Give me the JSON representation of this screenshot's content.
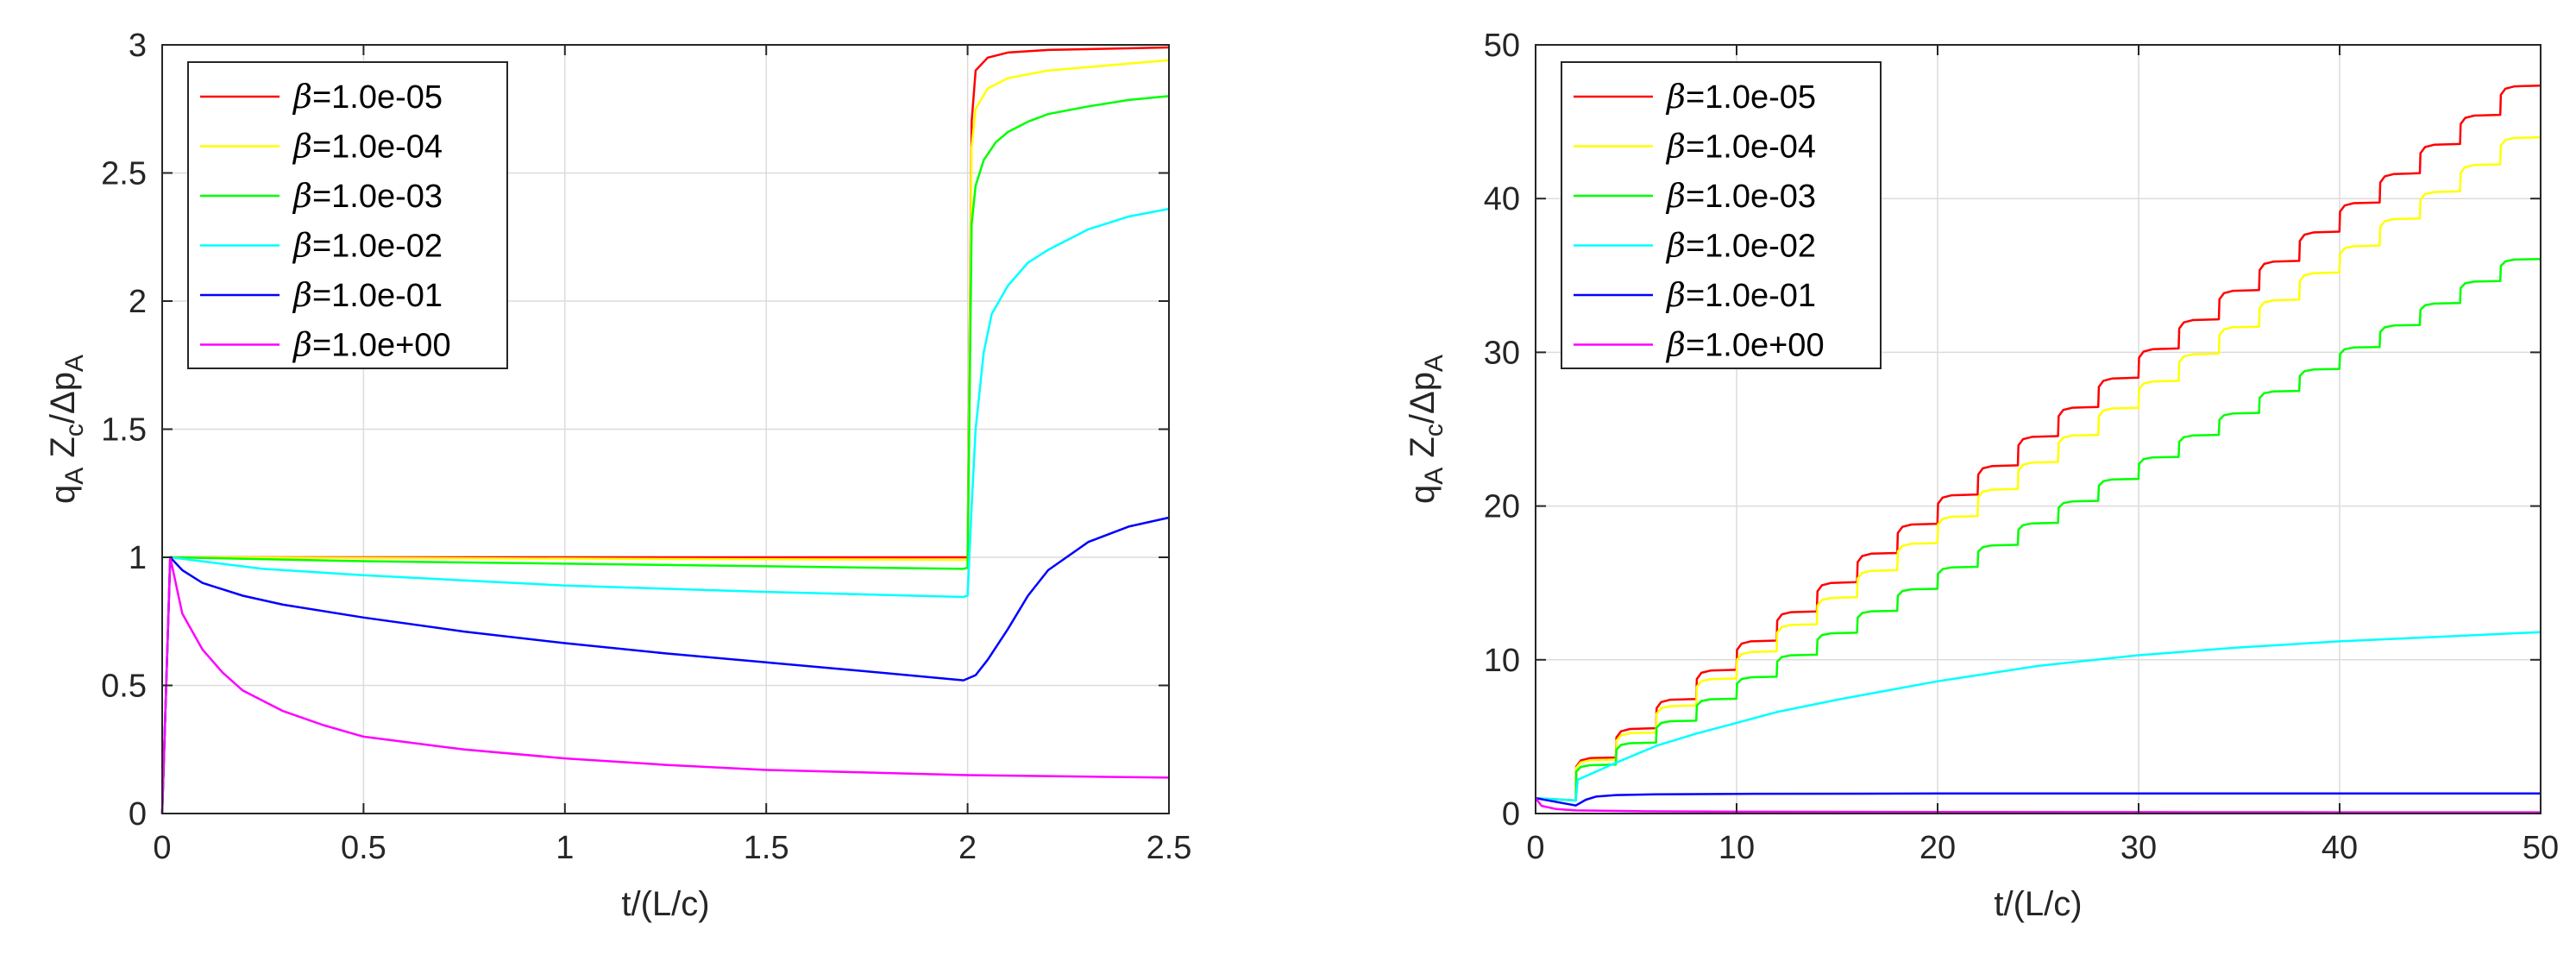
{
  "chart_data": [
    {
      "type": "line",
      "title": "",
      "xlabel": "t/(L/c)",
      "ylabel_main": "q",
      "ylabel_parts": [
        [
          "q",
          "A"
        ],
        [
          "Z",
          "c"
        ],
        [
          "/Δp",
          "A"
        ]
      ],
      "xlim": [
        0,
        2.5
      ],
      "ylim": [
        0,
        3
      ],
      "xticks": [
        0,
        0.5,
        1,
        1.5,
        2,
        2.5
      ],
      "xtick_labels": [
        "0",
        "0.5",
        "1",
        "1.5",
        "2",
        "2.5"
      ],
      "yticks": [
        0,
        0.5,
        1,
        1.5,
        2,
        2.5,
        3
      ],
      "ytick_labels": [
        "0",
        "0.5",
        "1",
        "1.5",
        "2",
        "2.5",
        "3"
      ],
      "grid": true,
      "legend_position": "top-left",
      "series": [
        {
          "name": "β=1.0e-05",
          "legend_text": "=1.0e-05",
          "color": "#ff0000",
          "x": [
            0,
            0.02,
            1.98,
            2.0,
            2.01,
            2.02,
            2.05,
            2.1,
            2.2,
            2.5
          ],
          "y": [
            0,
            1.0,
            1.0,
            1.0,
            2.7,
            2.9,
            2.95,
            2.97,
            2.98,
            2.99
          ]
        },
        {
          "name": "β=1.0e-04",
          "legend_text": "=1.0e-04",
          "color": "#ffff00",
          "x": [
            0,
            0.02,
            1.98,
            2.0,
            2.01,
            2.02,
            2.05,
            2.1,
            2.2,
            2.35,
            2.5
          ],
          "y": [
            0,
            1.0,
            0.99,
            0.99,
            2.6,
            2.75,
            2.83,
            2.87,
            2.9,
            2.92,
            2.94
          ]
        },
        {
          "name": "β=1.0e-03",
          "legend_text": "=1.0e-03",
          "color": "#00ff00",
          "x": [
            0,
            0.02,
            0.5,
            1.0,
            1.5,
            1.99,
            2.0,
            2.01,
            2.02,
            2.04,
            2.07,
            2.1,
            2.15,
            2.2,
            2.3,
            2.4,
            2.5
          ],
          "y": [
            0,
            1.0,
            0.985,
            0.975,
            0.965,
            0.955,
            0.96,
            2.3,
            2.45,
            2.55,
            2.62,
            2.66,
            2.7,
            2.73,
            2.76,
            2.785,
            2.8
          ]
        },
        {
          "name": "β=1.0e-02",
          "legend_text": "=1.0e-02",
          "color": "#00ffff",
          "x": [
            0,
            0.02,
            0.25,
            0.5,
            1.0,
            1.5,
            1.99,
            2.0,
            2.01,
            2.02,
            2.04,
            2.06,
            2.1,
            2.15,
            2.2,
            2.3,
            2.4,
            2.5
          ],
          "y": [
            0,
            1.0,
            0.955,
            0.93,
            0.89,
            0.865,
            0.845,
            0.85,
            1.2,
            1.5,
            1.8,
            1.95,
            2.06,
            2.15,
            2.2,
            2.28,
            2.33,
            2.36
          ]
        },
        {
          "name": "β=1.0e-01",
          "legend_text": "=1.0e-01",
          "color": "#0000ff",
          "x": [
            0,
            0.02,
            0.05,
            0.1,
            0.2,
            0.3,
            0.5,
            0.75,
            1.0,
            1.25,
            1.5,
            1.75,
            1.99,
            2.02,
            2.05,
            2.1,
            2.15,
            2.2,
            2.3,
            2.4,
            2.5
          ],
          "y": [
            0,
            1.0,
            0.95,
            0.9,
            0.85,
            0.815,
            0.765,
            0.71,
            0.665,
            0.625,
            0.59,
            0.555,
            0.52,
            0.54,
            0.6,
            0.72,
            0.85,
            0.95,
            1.06,
            1.12,
            1.155
          ]
        },
        {
          "name": "β=1.0e+00",
          "legend_text": "=1.0e+00",
          "color": "#ff00ff",
          "x": [
            0,
            0.02,
            0.05,
            0.1,
            0.15,
            0.2,
            0.3,
            0.4,
            0.5,
            0.75,
            1.0,
            1.25,
            1.5,
            2.0,
            2.5
          ],
          "y": [
            0,
            1.0,
            0.78,
            0.64,
            0.55,
            0.48,
            0.4,
            0.345,
            0.3,
            0.25,
            0.215,
            0.19,
            0.17,
            0.15,
            0.14
          ]
        }
      ]
    },
    {
      "type": "line",
      "title": "",
      "xlabel": "t/(L/c)",
      "ylabel_parts": [
        [
          "q",
          "A"
        ],
        [
          "Z",
          "c"
        ],
        [
          "/Δp",
          "A"
        ]
      ],
      "xlim": [
        0,
        50
      ],
      "ylim": [
        0,
        50
      ],
      "xticks": [
        0,
        10,
        20,
        30,
        40,
        50
      ],
      "xtick_labels": [
        "0",
        "10",
        "20",
        "30",
        "40",
        "50"
      ],
      "yticks": [
        0,
        10,
        20,
        30,
        40,
        50
      ],
      "ytick_labels": [
        "0",
        "10",
        "20",
        "30",
        "40",
        "50"
      ],
      "grid": true,
      "legend_position": "top-left",
      "series": [
        {
          "name": "β=1.0e-05",
          "legend_text": "=1.0e-05",
          "color": "#ff0000",
          "model": "steps",
          "step_size": 1.9,
          "start": 1.0,
          "settle": 1.0
        },
        {
          "name": "β=1.0e-04",
          "legend_text": "=1.0e-04",
          "color": "#ffff00",
          "model": "steps",
          "step_size": 1.76,
          "start": 1.0,
          "settle": 0.9
        },
        {
          "name": "β=1.0e-03",
          "legend_text": "=1.0e-03",
          "color": "#00ff00",
          "model": "steps",
          "step_size": 1.43,
          "start": 1.0,
          "settle": 0.75
        },
        {
          "name": "β=1.0e-02",
          "legend_text": "=1.0e-02",
          "color": "#00ffff",
          "model": "smooth",
          "x": [
            0,
            2,
            2.1,
            4,
            6,
            8,
            10,
            12,
            15,
            20,
            25,
            30,
            35,
            40,
            45,
            50
          ],
          "y": [
            1.0,
            0.85,
            2.2,
            3.3,
            4.4,
            5.2,
            5.9,
            6.6,
            7.4,
            8.6,
            9.6,
            10.3,
            10.8,
            11.2,
            11.5,
            11.8
          ]
        },
        {
          "name": "β=1.0e-01",
          "legend_text": "=1.0e-01",
          "color": "#0000ff",
          "model": "smooth",
          "x": [
            0,
            2,
            2.5,
            3,
            4,
            6,
            10,
            20,
            30,
            40,
            50
          ],
          "y": [
            1.0,
            0.52,
            0.9,
            1.1,
            1.2,
            1.25,
            1.28,
            1.3,
            1.3,
            1.3,
            1.3
          ]
        },
        {
          "name": "β=1.0e+00",
          "legend_text": "=1.0e+00",
          "color": "#ff00ff",
          "model": "smooth",
          "x": [
            0,
            0.3,
            1,
            2,
            5,
            10,
            20,
            30,
            40,
            50
          ],
          "y": [
            1.0,
            0.5,
            0.3,
            0.2,
            0.15,
            0.12,
            0.1,
            0.09,
            0.08,
            0.08
          ]
        }
      ]
    }
  ]
}
